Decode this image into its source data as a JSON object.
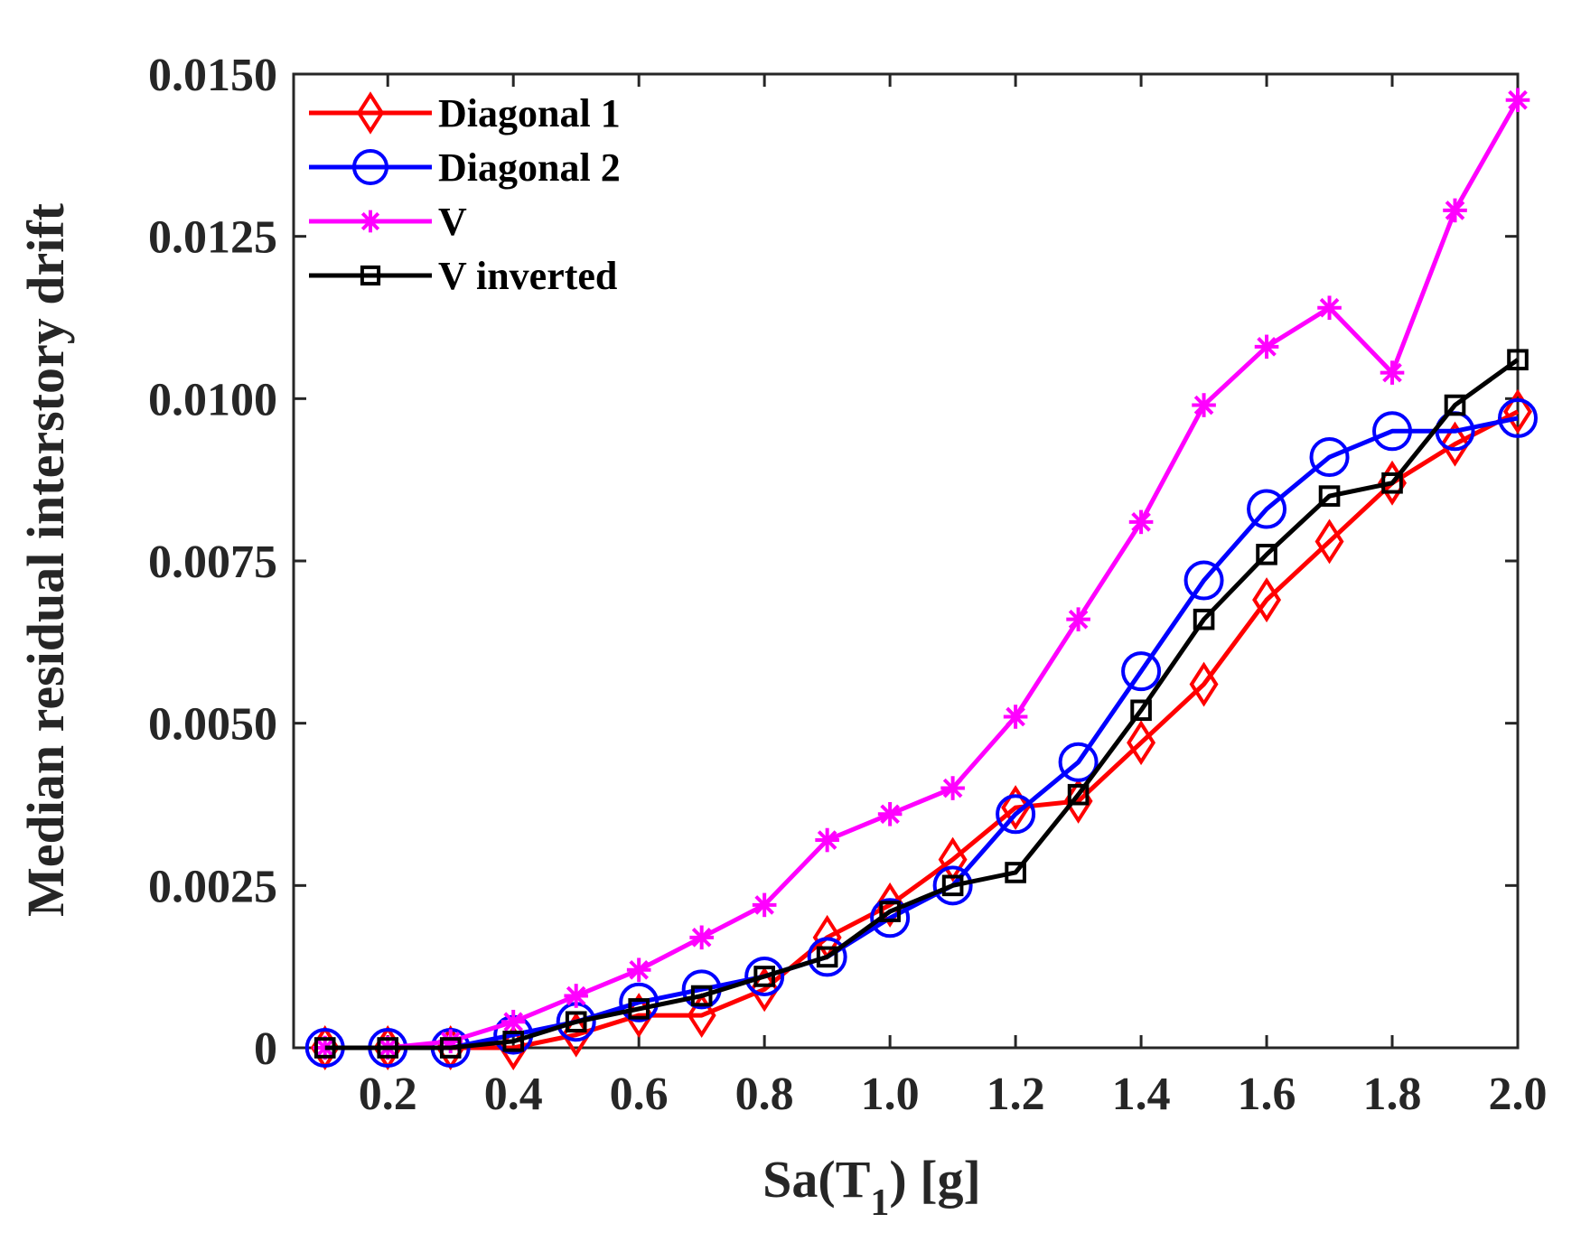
{
  "chart_data": {
    "type": "line",
    "xlabel": "Sa(T",
    "xlabel_sub": "1",
    "xlabel_suffix": ") [g]",
    "ylabel": "Median residual interstory drift",
    "xlim": [
      0.05,
      2.0
    ],
    "ylim": [
      0,
      0.015
    ],
    "xticks": [
      0.2,
      0.4,
      0.6,
      0.8,
      1.0,
      1.2,
      1.4,
      1.6,
      1.8,
      2.0
    ],
    "xtick_labels": [
      "0.2",
      "0.4",
      "0.6",
      "0.8",
      "1.0",
      "1.2",
      "1.4",
      "1.6",
      "1.8",
      "2.0"
    ],
    "yticks": [
      0,
      0.0025,
      0.005,
      0.0075,
      0.01,
      0.0125,
      0.015
    ],
    "ytick_labels": [
      "0",
      "0.0025",
      "0.0050",
      "0.0075",
      "0.0100",
      "0.0125",
      "0.0150"
    ],
    "grid": false,
    "legend_position": "top-left",
    "x": [
      0.1,
      0.2,
      0.3,
      0.4,
      0.5,
      0.6,
      0.7,
      0.8,
      0.9,
      1.0,
      1.1,
      1.2,
      1.3,
      1.4,
      1.5,
      1.6,
      1.7,
      1.8,
      1.9,
      2.0
    ],
    "series": [
      {
        "name": "Diagonal 1",
        "color": "#ff0000",
        "marker": "diamond",
        "values": [
          0.0,
          0.0,
          0.0,
          0.0,
          0.0002,
          0.0005,
          0.0005,
          0.0009,
          0.0017,
          0.0022,
          0.0029,
          0.0037,
          0.0038,
          0.0047,
          0.0056,
          0.0069,
          0.0078,
          0.0087,
          0.0093,
          0.0098
        ]
      },
      {
        "name": "Diagonal 2",
        "color": "#0000ff",
        "marker": "circle",
        "values": [
          0.0,
          0.0,
          0.0,
          0.0002,
          0.0004,
          0.0007,
          0.0009,
          0.0011,
          0.0014,
          0.002,
          0.0025,
          0.0036,
          0.0044,
          0.0058,
          0.0072,
          0.0083,
          0.0091,
          0.0095,
          0.0095,
          0.0097
        ]
      },
      {
        "name": "V",
        "color": "#ff00ff",
        "marker": "asterisk",
        "values": [
          0.0,
          0.0,
          0.0001,
          0.0004,
          0.0008,
          0.0012,
          0.0017,
          0.0022,
          0.0032,
          0.0036,
          0.004,
          0.0051,
          0.0066,
          0.0081,
          0.0099,
          0.0108,
          0.0114,
          0.0104,
          0.0129,
          0.0146
        ]
      },
      {
        "name": "V inverted",
        "color": "#000000",
        "marker": "square",
        "values": [
          0.0,
          0.0,
          0.0,
          0.0001,
          0.0004,
          0.0006,
          0.0008,
          0.0011,
          0.0014,
          0.0021,
          0.0025,
          0.0027,
          0.0039,
          0.0052,
          0.0066,
          0.0076,
          0.0085,
          0.0087,
          0.0099,
          0.0106
        ]
      }
    ]
  }
}
